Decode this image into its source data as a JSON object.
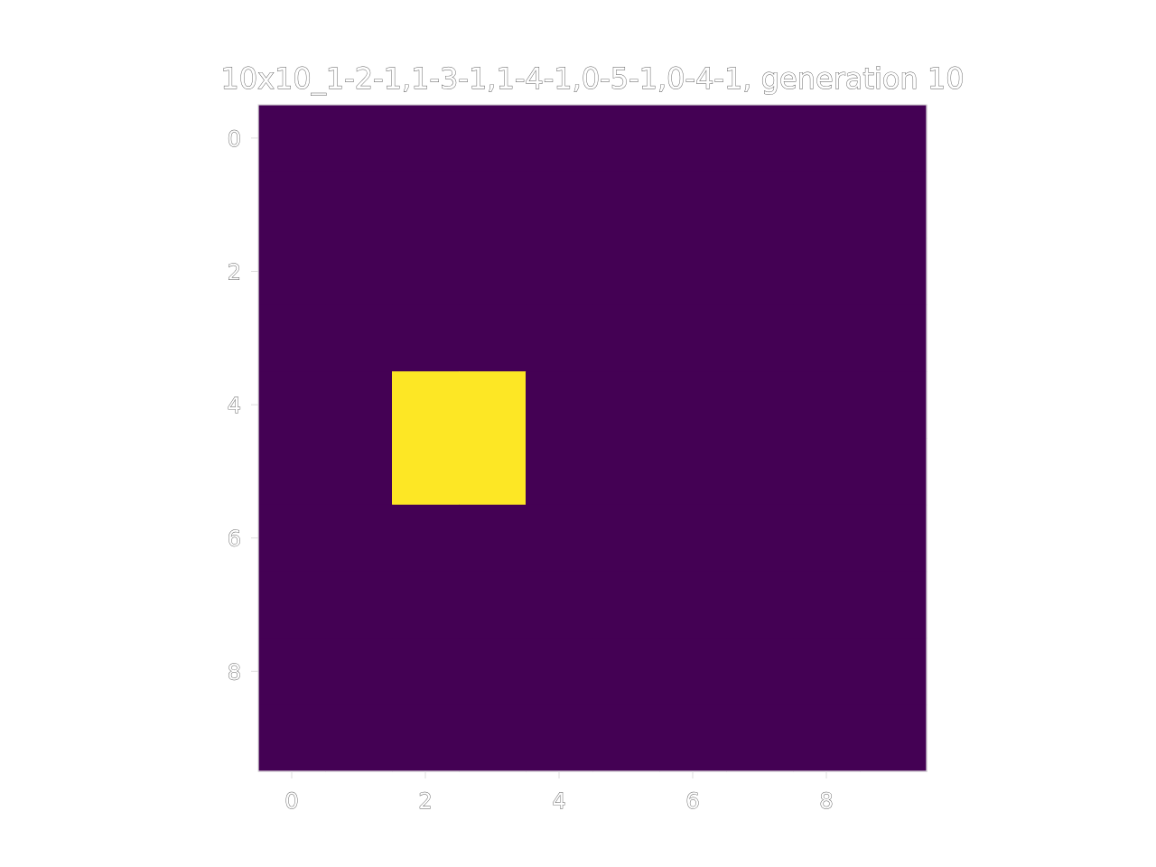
{
  "chart_data": {
    "type": "heatmap",
    "title": "10x10_1-2-1,1-3-1,1-4-1,0-5-1,0-4-1, generation 10",
    "xlabel": "",
    "ylabel": "",
    "rows": 10,
    "cols": 10,
    "xlim": [
      -0.5,
      9.5
    ],
    "ylim": [
      9.5,
      -0.5
    ],
    "xticks": [
      0,
      2,
      4,
      6,
      8
    ],
    "yticks": [
      0,
      2,
      4,
      6,
      8
    ],
    "xtick_labels": [
      "0",
      "2",
      "4",
      "6",
      "8"
    ],
    "ytick_labels": [
      "0",
      "2",
      "4",
      "6",
      "8"
    ],
    "grid": false,
    "colormap": "viridis",
    "colors": {
      "0": "#440154",
      "1": "#fde725"
    },
    "values": [
      [
        0,
        0,
        0,
        0,
        0,
        0,
        0,
        0,
        0,
        0
      ],
      [
        0,
        0,
        0,
        0,
        0,
        0,
        0,
        0,
        0,
        0
      ],
      [
        0,
        0,
        0,
        0,
        0,
        0,
        0,
        0,
        0,
        0
      ],
      [
        0,
        0,
        0,
        0,
        0,
        0,
        0,
        0,
        0,
        0
      ],
      [
        0,
        0,
        1,
        1,
        0,
        0,
        0,
        0,
        0,
        0
      ],
      [
        0,
        0,
        1,
        1,
        0,
        0,
        0,
        0,
        0,
        0
      ],
      [
        0,
        0,
        0,
        0,
        0,
        0,
        0,
        0,
        0,
        0
      ],
      [
        0,
        0,
        0,
        0,
        0,
        0,
        0,
        0,
        0,
        0
      ],
      [
        0,
        0,
        0,
        0,
        0,
        0,
        0,
        0,
        0,
        0
      ],
      [
        0,
        0,
        0,
        0,
        0,
        0,
        0,
        0,
        0,
        0
      ]
    ]
  }
}
